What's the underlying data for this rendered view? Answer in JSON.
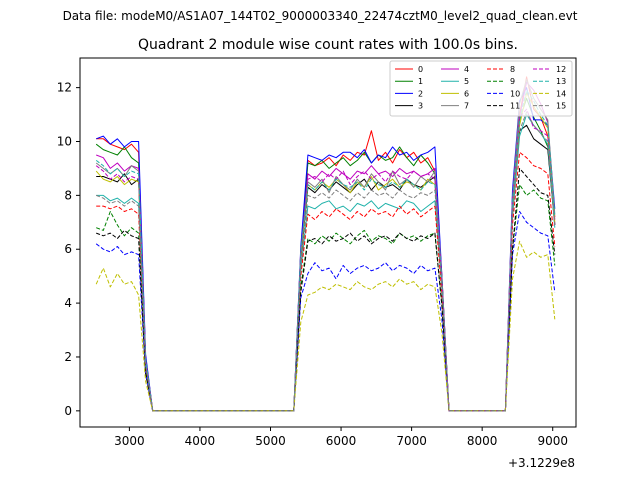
{
  "figure": {
    "suptitle": "Data file: modeM0/AS1A07_144T02_9000003340_22474cztM0_level2_quad_clean.evt",
    "offset_label": "+3.1229e8"
  },
  "chart_data": {
    "type": "line",
    "title": "Quadrant 2 module wise count rates with 100.0s bins.",
    "xlabel": "",
    "ylabel": "",
    "xlim": [
      2300,
      9330
    ],
    "ylim": [
      -0.6,
      13.1
    ],
    "x_offset": 312290000,
    "xticks": [
      3000,
      4000,
      5000,
      6000,
      7000,
      8000,
      9000
    ],
    "yticks": [
      0,
      2,
      4,
      6,
      8,
      10,
      12
    ],
    "grid": false,
    "legend_position": "top-right",
    "legend_columns": 4,
    "x": [
      2530,
      2630,
      2730,
      2830,
      2930,
      3030,
      3130,
      3230,
      3330,
      3430,
      3530,
      3630,
      3730,
      3830,
      3930,
      4030,
      4130,
      4230,
      4330,
      4430,
      4530,
      4630,
      4730,
      4830,
      4930,
      5030,
      5130,
      5230,
      5330,
      5430,
      5530,
      5630,
      5730,
      5830,
      5930,
      6030,
      6130,
      6230,
      6330,
      6430,
      6530,
      6630,
      6730,
      6830,
      6930,
      7030,
      7130,
      7230,
      7330,
      7430,
      7530,
      7630,
      7730,
      7830,
      7930,
      8030,
      8130,
      8230,
      8330,
      8430,
      8530,
      8630,
      8730,
      8830,
      8930,
      9030
    ],
    "series": [
      {
        "name": "0",
        "color": "#ff0000",
        "dash": false,
        "values": [
          10.1,
          10.1,
          9.9,
          9.8,
          9.7,
          9.9,
          9.6,
          2.0,
          0.0,
          0,
          0,
          0,
          0,
          0,
          0,
          0,
          0,
          0,
          0,
          0,
          0,
          0,
          0,
          0,
          0,
          0,
          0,
          0,
          0,
          6.0,
          9.3,
          9.1,
          9.2,
          9.4,
          9.1,
          9.5,
          9.3,
          9.6,
          9.5,
          10.4,
          9.3,
          9.6,
          9.2,
          9.7,
          9.4,
          9.6,
          9.2,
          9.4,
          8.9,
          5.0,
          0.0,
          0,
          0,
          0,
          0,
          0,
          0,
          0,
          0,
          8.0,
          11.0,
          12.4,
          11.2,
          10.9,
          10.2,
          7.2
        ]
      },
      {
        "name": "1",
        "color": "#008000",
        "dash": false,
        "values": [
          9.9,
          9.7,
          9.6,
          9.5,
          9.8,
          9.4,
          9.2,
          1.9,
          0.0,
          0,
          0,
          0,
          0,
          0,
          0,
          0,
          0,
          0,
          0,
          0,
          0,
          0,
          0,
          0,
          0,
          0,
          0,
          0,
          0,
          5.9,
          9.2,
          9.1,
          9.3,
          9.0,
          9.2,
          9.4,
          9.1,
          9.3,
          9.6,
          9.2,
          9.5,
          9.3,
          9.4,
          9.8,
          9.4,
          9.1,
          9.5,
          9.2,
          8.8,
          4.9,
          0.0,
          0,
          0,
          0,
          0,
          0,
          0,
          0,
          0,
          7.8,
          10.8,
          11.6,
          10.9,
          10.4,
          9.8,
          6.9
        ]
      },
      {
        "name": "2",
        "color": "#0000ff",
        "dash": false,
        "values": [
          10.1,
          10.2,
          9.9,
          10.1,
          9.8,
          10.0,
          10.0,
          2.1,
          0.0,
          0,
          0,
          0,
          0,
          0,
          0,
          0,
          0,
          0,
          0,
          0,
          0,
          0,
          0,
          0,
          0,
          0,
          0,
          0,
          0,
          6.1,
          9.5,
          9.4,
          9.3,
          9.5,
          9.4,
          9.6,
          9.6,
          9.4,
          9.7,
          9.2,
          9.5,
          9.4,
          9.8,
          9.5,
          9.6,
          9.3,
          9.5,
          9.6,
          9.8,
          5.0,
          0.0,
          0,
          0,
          0,
          0,
          0,
          0,
          0,
          0,
          8.2,
          11.5,
          12.0,
          10.8,
          10.8,
          10.6,
          7.5
        ]
      },
      {
        "name": "3",
        "color": "#000000",
        "dash": false,
        "values": [
          8.7,
          8.7,
          8.6,
          8.5,
          8.8,
          8.4,
          8.6,
          1.8,
          0.0,
          0,
          0,
          0,
          0,
          0,
          0,
          0,
          0,
          0,
          0,
          0,
          0,
          0,
          0,
          0,
          0,
          0,
          0,
          0,
          0,
          5.6,
          8.3,
          8.1,
          8.4,
          8.2,
          8.5,
          8.3,
          8.1,
          8.4,
          8.6,
          8.2,
          8.5,
          8.3,
          8.4,
          8.2,
          8.6,
          8.4,
          8.3,
          8.5,
          8.7,
          4.7,
          0.0,
          0,
          0,
          0,
          0,
          0,
          0,
          0,
          0,
          7.5,
          10.4,
          10.6,
          10.1,
          9.9,
          9.7,
          6.9
        ]
      },
      {
        "name": "4",
        "color": "#bf00bf",
        "dash": false,
        "values": [
          9.5,
          9.4,
          9.0,
          9.2,
          8.9,
          9.1,
          9.0,
          1.9,
          0.0,
          0,
          0,
          0,
          0,
          0,
          0,
          0,
          0,
          0,
          0,
          0,
          0,
          0,
          0,
          0,
          0,
          0,
          0,
          0,
          0,
          5.8,
          8.8,
          8.6,
          8.9,
          8.7,
          9.0,
          8.8,
          8.6,
          8.9,
          8.8,
          9.1,
          8.8,
          8.9,
          8.7,
          9.0,
          8.8,
          8.9,
          8.7,
          8.8,
          9.0,
          4.8,
          0.0,
          0,
          0,
          0,
          0,
          0,
          0,
          0,
          0,
          7.7,
          10.9,
          12.2,
          11.9,
          11.4,
          10.7,
          7.1
        ]
      },
      {
        "name": "5",
        "color": "#20b2aa",
        "dash": false,
        "values": [
          8.0,
          8.0,
          7.8,
          7.9,
          7.7,
          7.9,
          7.7,
          1.7,
          0.0,
          0,
          0,
          0,
          0,
          0,
          0,
          0,
          0,
          0,
          0,
          0,
          0,
          0,
          0,
          0,
          0,
          0,
          0,
          0,
          0,
          5.2,
          7.6,
          7.5,
          7.7,
          7.8,
          7.5,
          7.6,
          7.4,
          7.7,
          7.6,
          7.8,
          7.5,
          7.7,
          7.6,
          7.5,
          7.8,
          7.7,
          7.4,
          7.6,
          7.8,
          4.5,
          0.0,
          0,
          0,
          0,
          0,
          0,
          0,
          0,
          0,
          7.2,
          10.2,
          11.0,
          10.6,
          10.3,
          9.9,
          6.8
        ]
      },
      {
        "name": "6",
        "color": "#bfbf00",
        "dash": false,
        "values": [
          8.9,
          8.6,
          8.5,
          8.7,
          8.4,
          8.6,
          8.5,
          1.8,
          0.0,
          0,
          0,
          0,
          0,
          0,
          0,
          0,
          0,
          0,
          0,
          0,
          0,
          0,
          0,
          0,
          0,
          0,
          0,
          0,
          0,
          5.7,
          8.4,
          8.2,
          8.5,
          8.3,
          8.6,
          8.4,
          8.1,
          8.5,
          8.3,
          8.7,
          8.2,
          8.4,
          8.6,
          8.3,
          8.5,
          8.4,
          8.2,
          8.6,
          8.4,
          4.8,
          0.0,
          0,
          0,
          0,
          0,
          0,
          0,
          0,
          0,
          7.6,
          10.6,
          11.8,
          11.3,
          10.9,
          10.5,
          7.0
        ]
      },
      {
        "name": "7",
        "color": "#7f7f7f",
        "dash": false,
        "values": [
          9.2,
          9.0,
          8.8,
          9.0,
          8.7,
          9.1,
          8.9,
          1.9,
          0.0,
          0,
          0,
          0,
          0,
          0,
          0,
          0,
          0,
          0,
          0,
          0,
          0,
          0,
          0,
          0,
          0,
          0,
          0,
          0,
          0,
          5.9,
          8.5,
          8.3,
          8.6,
          8.1,
          8.7,
          8.4,
          8.2,
          8.6,
          8.3,
          8.8,
          8.5,
          8.2,
          8.9,
          8.4,
          8.6,
          8.3,
          8.7,
          8.5,
          8.9,
          4.9,
          0.0,
          0,
          0,
          0,
          0,
          0,
          0,
          0,
          0,
          7.9,
          11.4,
          12.3,
          11.6,
          11.2,
          10.8,
          7.3
        ]
      },
      {
        "name": "8",
        "color": "#ff0000",
        "dash": true,
        "values": [
          7.6,
          7.6,
          7.5,
          7.6,
          7.4,
          7.5,
          7.3,
          1.6,
          0.0,
          0,
          0,
          0,
          0,
          0,
          0,
          0,
          0,
          0,
          0,
          0,
          0,
          0,
          0,
          0,
          0,
          0,
          0,
          0,
          0,
          5.0,
          7.3,
          7.1,
          7.4,
          7.2,
          7.5,
          7.3,
          7.1,
          7.4,
          7.2,
          7.5,
          7.3,
          7.4,
          7.2,
          7.6,
          7.3,
          7.5,
          7.2,
          7.4,
          7.6,
          4.3,
          0.0,
          0,
          0,
          0,
          0,
          0,
          0,
          0,
          0,
          6.9,
          9.6,
          9.4,
          9.1,
          9.0,
          8.8,
          6.1
        ]
      },
      {
        "name": "9",
        "color": "#008000",
        "dash": true,
        "values": [
          6.8,
          6.7,
          7.4,
          6.9,
          6.5,
          6.8,
          6.6,
          1.5,
          0.0,
          0,
          0,
          0,
          0,
          0,
          0,
          0,
          0,
          0,
          0,
          0,
          0,
          0,
          0,
          0,
          0,
          0,
          0,
          0,
          0,
          4.6,
          6.4,
          6.2,
          6.5,
          6.3,
          6.6,
          6.4,
          6.2,
          6.5,
          6.7,
          6.3,
          6.5,
          6.4,
          6.2,
          6.6,
          6.4,
          6.5,
          6.3,
          6.5,
          6.6,
          3.9,
          0.0,
          0,
          0,
          0,
          0,
          0,
          0,
          0,
          0,
          6.0,
          8.4,
          8.0,
          8.2,
          7.9,
          7.8,
          5.4
        ]
      },
      {
        "name": "10",
        "color": "#0000ff",
        "dash": true,
        "values": [
          6.2,
          6.0,
          5.9,
          6.1,
          5.8,
          5.9,
          5.8,
          1.4,
          0.0,
          0,
          0,
          0,
          0,
          0,
          0,
          0,
          0,
          0,
          0,
          0,
          0,
          0,
          0,
          0,
          0,
          0,
          0,
          0,
          0,
          4.2,
          5.1,
          5.5,
          5.2,
          5.3,
          4.9,
          5.4,
          5.1,
          5.3,
          5.4,
          5.2,
          5.3,
          5.5,
          5.2,
          5.4,
          5.3,
          5.1,
          5.4,
          5.2,
          5.3,
          3.4,
          0.0,
          0,
          0,
          0,
          0,
          0,
          0,
          0,
          0,
          5.8,
          7.4,
          7.0,
          6.8,
          6.6,
          6.5,
          4.4
        ]
      },
      {
        "name": "11",
        "color": "#000000",
        "dash": true,
        "values": [
          6.6,
          6.5,
          6.6,
          6.4,
          6.7,
          6.5,
          6.4,
          1.4,
          0.0,
          0,
          0,
          0,
          0,
          0,
          0,
          0,
          0,
          0,
          0,
          0,
          0,
          0,
          0,
          0,
          0,
          0,
          0,
          0,
          0,
          4.4,
          6.3,
          6.4,
          6.2,
          6.5,
          6.3,
          6.4,
          6.6,
          6.3,
          6.5,
          6.2,
          6.4,
          6.5,
          6.3,
          6.6,
          6.4,
          6.3,
          6.5,
          6.4,
          6.6,
          3.9,
          0.0,
          0,
          0,
          0,
          0,
          0,
          0,
          0,
          0,
          6.0,
          9.0,
          8.7,
          8.4,
          8.1,
          8.0,
          5.8
        ]
      },
      {
        "name": "12",
        "color": "#bf00bf",
        "dash": true,
        "values": [
          9.1,
          8.9,
          8.6,
          8.8,
          8.5,
          8.7,
          8.6,
          1.8,
          0.0,
          0,
          0,
          0,
          0,
          0,
          0,
          0,
          0,
          0,
          0,
          0,
          0,
          0,
          0,
          0,
          0,
          0,
          0,
          0,
          0,
          5.8,
          8.6,
          8.7,
          8.5,
          8.8,
          8.6,
          8.9,
          8.4,
          8.7,
          8.9,
          8.6,
          8.8,
          8.5,
          8.9,
          8.7,
          8.6,
          8.9,
          8.7,
          8.8,
          8.6,
          4.8,
          0.0,
          0,
          0,
          0,
          0,
          0,
          0,
          0,
          0,
          7.8,
          10.9,
          11.2,
          10.5,
          10.4,
          10.2,
          6.9
        ]
      },
      {
        "name": "13",
        "color": "#20b2aa",
        "dash": true,
        "values": [
          9.3,
          9.1,
          8.8,
          9.0,
          8.7,
          8.9,
          8.8,
          1.9,
          0.0,
          0,
          0,
          0,
          0,
          0,
          0,
          0,
          0,
          0,
          0,
          0,
          0,
          0,
          0,
          0,
          0,
          0,
          0,
          0,
          0,
          5.9,
          8.4,
          8.2,
          8.5,
          8.2,
          8.6,
          8.4,
          8.3,
          8.5,
          8.2,
          8.6,
          8.4,
          8.3,
          8.5,
          8.3,
          8.6,
          8.4,
          8.2,
          8.5,
          8.4,
          4.8,
          0.0,
          0,
          0,
          0,
          0,
          0,
          0,
          0,
          0,
          7.8,
          10.8,
          11.9,
          11.5,
          11.0,
          10.6,
          7.2
        ]
      },
      {
        "name": "14",
        "color": "#bfbf00",
        "dash": true,
        "values": [
          4.7,
          5.3,
          4.6,
          5.1,
          4.7,
          4.8,
          4.3,
          1.1,
          0.0,
          0,
          0,
          0,
          0,
          0,
          0,
          0,
          0,
          0,
          0,
          0,
          0,
          0,
          0,
          0,
          0,
          0,
          0,
          0,
          0,
          3.3,
          4.3,
          4.4,
          4.6,
          4.5,
          4.7,
          4.6,
          4.5,
          4.8,
          4.6,
          4.5,
          4.7,
          4.8,
          4.6,
          4.9,
          4.7,
          4.8,
          4.5,
          4.7,
          4.6,
          2.9,
          0.0,
          0,
          0,
          0,
          0,
          0,
          0,
          0,
          0,
          4.9,
          6.3,
          5.7,
          5.9,
          5.7,
          5.8,
          3.4
        ]
      },
      {
        "name": "15",
        "color": "#7f7f7f",
        "dash": true,
        "values": [
          8.0,
          7.9,
          7.7,
          7.8,
          7.6,
          7.8,
          7.6,
          1.7,
          0.0,
          0,
          0,
          0,
          0,
          0,
          0,
          0,
          0,
          0,
          0,
          0,
          0,
          0,
          0,
          0,
          0,
          0,
          0,
          0,
          0,
          5.3,
          8.0,
          7.9,
          8.1,
          7.9,
          8.2,
          8.0,
          7.8,
          8.1,
          7.9,
          8.2,
          8.0,
          8.1,
          7.9,
          8.2,
          8.0,
          7.9,
          8.1,
          8.0,
          8.2,
          4.6,
          0.0,
          0,
          0,
          0,
          0,
          0,
          0,
          0,
          0,
          7.4,
          10.4,
          11.1,
          10.6,
          10.3,
          10.0,
          6.9
        ]
      }
    ]
  }
}
